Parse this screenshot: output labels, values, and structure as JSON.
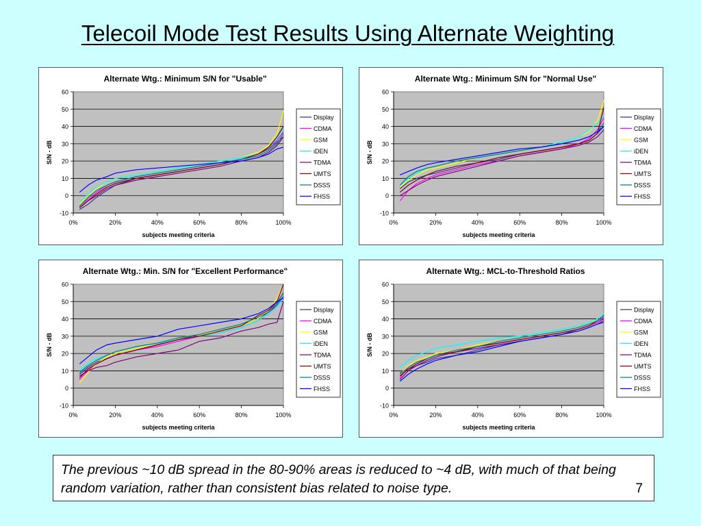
{
  "slide": {
    "title": "Telecoil Mode Test Results Using Alternate Weighting",
    "note": "The previous ~10 dB spread in the 80-90% areas is reduced to ~4 dB, with much of that being random variation, rather than consistent bias related to noise type.",
    "page_number": "7"
  },
  "colors": {
    "background": "#ccffff",
    "plot_area": "#c0c0c0",
    "Display": "#333399",
    "CDMA": "#ff00ff",
    "GSM": "#ffff00",
    "iDEN": "#00ffff",
    "TDMA": "#800080",
    "UMTS": "#800000",
    "DSSS": "#008080",
    "FHSS": "#0000ff"
  },
  "chart_data": [
    {
      "type": "line",
      "title": "Alternate Wtg.:  Minimum S/N for \"Usable\"",
      "xlabel": "subjects meeting criteria",
      "ylabel": "S/N - dB",
      "xlim": [
        0,
        100
      ],
      "ylim": [
        -10,
        60
      ],
      "xticks": [
        "0%",
        "20%",
        "40%",
        "60%",
        "80%",
        "100%"
      ],
      "yticks": [
        "-10",
        "0",
        "10",
        "20",
        "30",
        "40",
        "50",
        "60"
      ],
      "grid": "horizontal",
      "legend": "right",
      "x": [
        3,
        7,
        11,
        16,
        20,
        30,
        40,
        50,
        60,
        70,
        80,
        88,
        93,
        97,
        100
      ],
      "series": [
        {
          "name": "Display",
          "values": [
            -8,
            -5,
            -1,
            3,
            6,
            10,
            12,
            14,
            16,
            18,
            21,
            24,
            27,
            31,
            34
          ]
        },
        {
          "name": "CDMA",
          "values": [
            -6,
            -2,
            2,
            6,
            8,
            11,
            13,
            15,
            17,
            19,
            21,
            24,
            28,
            32,
            37
          ]
        },
        {
          "name": "GSM",
          "values": [
            -5,
            0,
            4,
            8,
            10,
            12,
            14,
            16,
            18,
            20,
            22,
            25,
            29,
            36,
            49
          ]
        },
        {
          "name": "iDEN",
          "values": [
            -4,
            1,
            5,
            8,
            10,
            12,
            14,
            16,
            18,
            20,
            22,
            24,
            28,
            33,
            39
          ]
        },
        {
          "name": "TDMA",
          "values": [
            -7,
            -3,
            0,
            4,
            6,
            9,
            11,
            13,
            15,
            17,
            20,
            22,
            25,
            29,
            34
          ]
        },
        {
          "name": "UMTS",
          "values": [
            -7,
            -3,
            1,
            5,
            7,
            10,
            12,
            14,
            16,
            18,
            21,
            24,
            28,
            34,
            40
          ]
        },
        {
          "name": "DSSS",
          "values": [
            -6,
            -1,
            3,
            6,
            8,
            11,
            13,
            15,
            17,
            19,
            21,
            23,
            26,
            30,
            36
          ]
        },
        {
          "name": "FHSS",
          "values": [
            2,
            6,
            9,
            11,
            13,
            15,
            16,
            17,
            18,
            19,
            20,
            22,
            24,
            27,
            28
          ]
        }
      ]
    },
    {
      "type": "line",
      "title": "Alternate Wtg.:  Minimum S/N for \"Normal Use\"",
      "xlabel": "subjects meeting criteria",
      "ylabel": "S/N - dB",
      "xlim": [
        0,
        100
      ],
      "ylim": [
        -10,
        60
      ],
      "xticks": [
        "0%",
        "20%",
        "40%",
        "60%",
        "80%",
        "100%"
      ],
      "yticks": [
        "-10",
        "0",
        "10",
        "20",
        "30",
        "40",
        "50",
        "60"
      ],
      "grid": "horizontal",
      "legend": "right",
      "x": [
        3,
        7,
        11,
        16,
        20,
        30,
        40,
        50,
        60,
        70,
        80,
        88,
        93,
        97,
        100
      ],
      "series": [
        {
          "name": "Display",
          "values": [
            4,
            8,
            10,
            12,
            13,
            16,
            19,
            21,
            24,
            26,
            28,
            30,
            32,
            36,
            40
          ]
        },
        {
          "name": "CDMA",
          "values": [
            -3,
            3,
            7,
            10,
            12,
            15,
            18,
            20,
            23,
            25,
            27,
            30,
            33,
            38,
            45
          ]
        },
        {
          "name": "GSM",
          "values": [
            5,
            9,
            12,
            15,
            16,
            19,
            22,
            24,
            26,
            28,
            31,
            34,
            37,
            43,
            55
          ]
        },
        {
          "name": "iDEN",
          "values": [
            6,
            10,
            13,
            16,
            17,
            20,
            22,
            24,
            26,
            28,
            31,
            34,
            38,
            42,
            46
          ]
        },
        {
          "name": "TDMA",
          "values": [
            0,
            3,
            6,
            9,
            11,
            14,
            17,
            20,
            23,
            25,
            27,
            29,
            31,
            34,
            38
          ]
        },
        {
          "name": "UMTS",
          "values": [
            2,
            6,
            9,
            12,
            14,
            17,
            19,
            22,
            24,
            26,
            28,
            30,
            32,
            36,
            51
          ]
        },
        {
          "name": "DSSS",
          "values": [
            6,
            11,
            14,
            16,
            17,
            20,
            22,
            24,
            26,
            28,
            30,
            32,
            34,
            37,
            42
          ]
        },
        {
          "name": "FHSS",
          "values": [
            12,
            14,
            16,
            18,
            19,
            21,
            23,
            25,
            27,
            28,
            30,
            32,
            34,
            37,
            40
          ]
        }
      ]
    },
    {
      "type": "line",
      "title": "Alternate Wtg.:  Min. S/N for \"Excellent Performance\"",
      "xlabel": "subjects meeting criteria",
      "ylabel": "S/N - dB",
      "xlim": [
        0,
        100
      ],
      "ylim": [
        -10,
        60
      ],
      "xticks": [
        "0%",
        "20%",
        "40%",
        "60%",
        "80%",
        "100%"
      ],
      "yticks": [
        "-10",
        "0",
        "10",
        "20",
        "30",
        "40",
        "50",
        "60"
      ],
      "grid": "horizontal",
      "legend": "right",
      "x": [
        3,
        7,
        11,
        16,
        20,
        30,
        40,
        50,
        60,
        70,
        80,
        88,
        93,
        97,
        100
      ],
      "series": [
        {
          "name": "Display",
          "values": [
            8,
            12,
            15,
            17,
            19,
            22,
            25,
            28,
            31,
            33,
            36,
            40,
            44,
            49,
            55
          ]
        },
        {
          "name": "CDMA",
          "values": [
            5,
            10,
            14,
            17,
            19,
            22,
            24,
            27,
            30,
            32,
            35,
            39,
            43,
            48,
            53
          ]
        },
        {
          "name": "GSM",
          "values": [
            3,
            9,
            14,
            18,
            20,
            23,
            26,
            29,
            31,
            33,
            36,
            40,
            45,
            52,
            60
          ]
        },
        {
          "name": "iDEN",
          "values": [
            10,
            14,
            17,
            19,
            21,
            24,
            26,
            28,
            30,
            32,
            35,
            39,
            43,
            47,
            52
          ]
        },
        {
          "name": "TDMA",
          "values": [
            7,
            10,
            12,
            13,
            15,
            18,
            20,
            22,
            27,
            29,
            33,
            35,
            37,
            38,
            50
          ]
        },
        {
          "name": "UMTS",
          "values": [
            6,
            11,
            14,
            17,
            19,
            22,
            25,
            28,
            30,
            33,
            36,
            42,
            45,
            50,
            60
          ]
        },
        {
          "name": "DSSS",
          "values": [
            9,
            13,
            16,
            19,
            21,
            24,
            26,
            29,
            31,
            34,
            37,
            41,
            44,
            48,
            53
          ]
        },
        {
          "name": "FHSS",
          "values": [
            14,
            18,
            22,
            25,
            26,
            28,
            30,
            34,
            36,
            38,
            40,
            43,
            46,
            50,
            52
          ]
        }
      ]
    },
    {
      "type": "line",
      "title": "Alternate Wtg.:  MCL-to-Threshold Ratios",
      "xlabel": "subjects meeting criteria",
      "ylabel": "S/N - dB",
      "xlim": [
        0,
        100
      ],
      "ylim": [
        -10,
        60
      ],
      "xticks": [
        "0%",
        "20%",
        "40%",
        "60%",
        "80%",
        "100%"
      ],
      "yticks": [
        "-10",
        "0",
        "10",
        "20",
        "30",
        "40",
        "50",
        "60"
      ],
      "grid": "horizontal",
      "legend": "right",
      "x": [
        3,
        7,
        11,
        16,
        20,
        30,
        40,
        50,
        60,
        70,
        80,
        88,
        93,
        97,
        100
      ],
      "series": [
        {
          "name": "Display",
          "values": [
            9,
            11,
            13,
            15,
            17,
            19,
            22,
            25,
            27,
            29,
            31,
            34,
            36,
            38,
            40
          ]
        },
        {
          "name": "CDMA",
          "values": [
            6,
            12,
            15,
            17,
            19,
            22,
            24,
            26,
            28,
            30,
            32,
            34,
            36,
            38,
            41
          ]
        },
        {
          "name": "GSM",
          "values": [
            8,
            13,
            16,
            18,
            20,
            22,
            25,
            27,
            29,
            31,
            33,
            35,
            37,
            40,
            43
          ]
        },
        {
          "name": "iDEN",
          "values": [
            12,
            16,
            19,
            21,
            23,
            25,
            27,
            29,
            30,
            32,
            34,
            36,
            38,
            40,
            43
          ]
        },
        {
          "name": "TDMA",
          "values": [
            5,
            10,
            13,
            16,
            18,
            21,
            23,
            25,
            27,
            29,
            31,
            33,
            35,
            37,
            39
          ]
        },
        {
          "name": "UMTS",
          "values": [
            7,
            11,
            14,
            17,
            19,
            21,
            24,
            26,
            28,
            30,
            32,
            34,
            36,
            39,
            42
          ]
        },
        {
          "name": "DSSS",
          "values": [
            8,
            12,
            15,
            17,
            19,
            22,
            24,
            27,
            29,
            31,
            33,
            35,
            37,
            39,
            42
          ]
        },
        {
          "name": "FHSS",
          "values": [
            4,
            8,
            11,
            14,
            16,
            19,
            21,
            24,
            27,
            29,
            31,
            33,
            35,
            37,
            38
          ]
        }
      ]
    }
  ]
}
